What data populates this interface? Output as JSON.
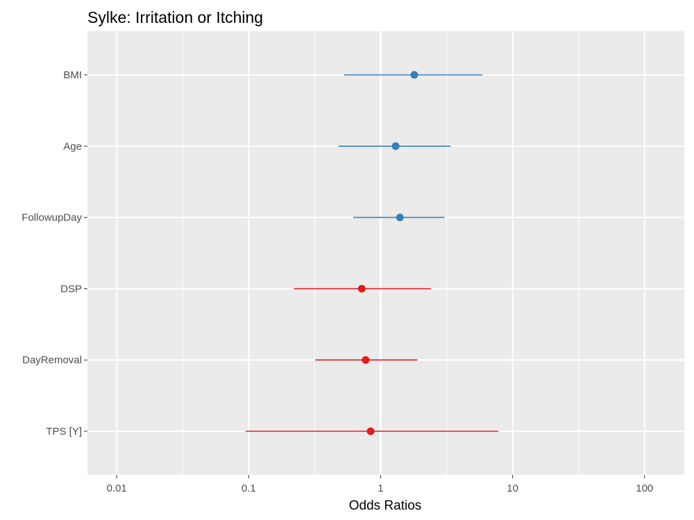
{
  "chart_data": {
    "type": "forest",
    "title": "Sylke: Irritation or Itching",
    "xlabel": "Odds Ratios",
    "ylabel": "",
    "x_scale": "log10",
    "xlim": [
      0.006,
      200
    ],
    "x_ticks": [
      0.01,
      0.1,
      1,
      10,
      100
    ],
    "x_tick_labels": [
      "0.01",
      "0.1",
      "1",
      "10",
      "100"
    ],
    "reference_line": 1,
    "grid": true,
    "legend": "none",
    "colors": {
      "positive": "#377eb8",
      "negative": "#e41a1c",
      "panel": "#ebebeb",
      "grid": "#ffffff"
    },
    "terms": [
      {
        "label": "BMI",
        "estimate": 1.8,
        "low": 0.53,
        "high": 5.9,
        "direction": "positive"
      },
      {
        "label": "Age",
        "estimate": 1.3,
        "low": 0.48,
        "high": 3.4,
        "direction": "positive"
      },
      {
        "label": "FollowupDay",
        "estimate": 1.4,
        "low": 0.62,
        "high": 3.05,
        "direction": "positive"
      },
      {
        "label": "DSP",
        "estimate": 0.72,
        "low": 0.22,
        "high": 2.4,
        "direction": "negative"
      },
      {
        "label": "DayRemoval",
        "estimate": 0.77,
        "low": 0.32,
        "high": 1.9,
        "direction": "negative"
      },
      {
        "label": "TPS [Y]",
        "estimate": 0.84,
        "low": 0.095,
        "high": 7.8,
        "direction": "negative"
      }
    ]
  }
}
